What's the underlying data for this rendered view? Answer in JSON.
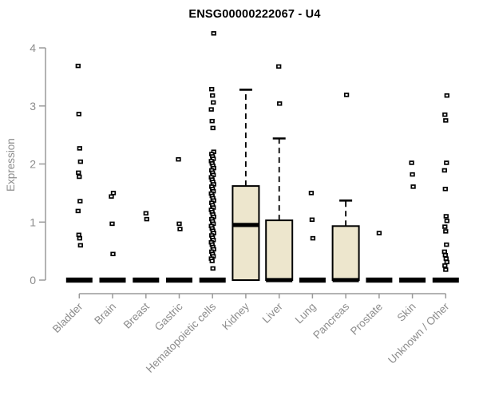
{
  "title": "ENSG00000222067 - U4",
  "chart_data": {
    "type": "boxplot",
    "title": "ENSG00000222067 - U4",
    "xlabel": "",
    "ylabel": "Expression",
    "ylim": [
      0,
      4.3
    ],
    "y_ticks": [
      0,
      1,
      2,
      3,
      4
    ],
    "grid": false,
    "legend": "none",
    "colors": {
      "box_fill": "#EDE6CD",
      "box_stroke": "#000000",
      "median": "#000000",
      "outlier": "#000000",
      "axis_line": "#9A9A9A",
      "axis_text": "#8C8C8C",
      "title_text": "#000000",
      "background": "#FFFFFF"
    },
    "categories": [
      "Bladder",
      "Brain",
      "Breast",
      "Gastric",
      "Hematopoietic cells",
      "Kidney",
      "Liver",
      "Lung",
      "Pancreas",
      "Prostate",
      "Skin",
      "Unknown / Other"
    ],
    "series": [
      {
        "name": "Bladder",
        "q1": 0,
        "median": 0,
        "q3": 0,
        "whisker_low": 0,
        "whisker_high": 0,
        "outliers": [
          3.69,
          2.86,
          2.27,
          2.04,
          1.85,
          1.78,
          1.36,
          1.19,
          0.78,
          0.72,
          0.6
        ]
      },
      {
        "name": "Brain",
        "q1": 0,
        "median": 0,
        "q3": 0,
        "whisker_low": 0,
        "whisker_high": 0,
        "outliers": [
          1.5,
          1.44,
          0.97,
          0.45
        ]
      },
      {
        "name": "Breast",
        "q1": 0,
        "median": 0,
        "q3": 0,
        "whisker_low": 0,
        "whisker_high": 0,
        "outliers": [
          1.15,
          1.05
        ]
      },
      {
        "name": "Gastric",
        "q1": 0,
        "median": 0,
        "q3": 0,
        "whisker_low": 0,
        "whisker_high": 0,
        "outliers": [
          2.08,
          0.97,
          0.88
        ]
      },
      {
        "name": "Hematopoietic cells",
        "q1": 0,
        "median": 0,
        "q3": 0,
        "whisker_low": 0,
        "whisker_high": 0,
        "outliers": [
          4.25,
          3.29,
          3.18,
          3.06,
          2.94,
          2.74,
          2.62,
          2.21,
          2.17,
          2.13,
          2.09,
          2.05,
          2.01,
          1.97,
          1.93,
          1.89,
          1.85,
          1.81,
          1.77,
          1.73,
          1.69,
          1.65,
          1.61,
          1.57,
          1.53,
          1.49,
          1.45,
          1.41,
          1.37,
          1.33,
          1.29,
          1.25,
          1.21,
          1.17,
          1.13,
          1.09,
          1.05,
          1.01,
          0.97,
          0.93,
          0.89,
          0.85,
          0.81,
          0.77,
          0.73,
          0.69,
          0.65,
          0.61,
          0.57,
          0.53,
          0.49,
          0.45,
          0.41,
          0.37,
          0.33,
          0.2
        ]
      },
      {
        "name": "Kidney",
        "q1": 0,
        "median": 0.95,
        "q3": 1.62,
        "whisker_low": 0,
        "whisker_high": 3.28,
        "outliers": []
      },
      {
        "name": "Liver",
        "q1": 0,
        "median": 0,
        "q3": 1.03,
        "whisker_low": 0,
        "whisker_high": 2.44,
        "outliers": [
          3.68,
          3.04
        ]
      },
      {
        "name": "Lung",
        "q1": 0,
        "median": 0,
        "q3": 0,
        "whisker_low": 0,
        "whisker_high": 0,
        "outliers": [
          1.5,
          1.04,
          0.72
        ]
      },
      {
        "name": "Pancreas",
        "q1": 0,
        "median": 0,
        "q3": 0.93,
        "whisker_low": 0,
        "whisker_high": 1.37,
        "outliers": [
          3.19
        ]
      },
      {
        "name": "Prostate",
        "q1": 0,
        "median": 0,
        "q3": 0,
        "whisker_low": 0,
        "whisker_high": 0,
        "outliers": [
          0.81
        ]
      },
      {
        "name": "Skin",
        "q1": 0,
        "median": 0,
        "q3": 0,
        "whisker_low": 0,
        "whisker_high": 0,
        "outliers": [
          2.02,
          1.82,
          1.61
        ]
      },
      {
        "name": "Unknown / Other",
        "q1": 0,
        "median": 0,
        "q3": 0,
        "whisker_low": 0,
        "whisker_high": 0,
        "outliers": [
          3.18,
          2.85,
          2.75,
          2.02,
          1.89,
          1.57,
          1.1,
          1.02,
          0.92,
          0.84,
          0.61,
          0.49,
          0.43,
          0.37,
          0.31,
          0.25,
          0.18
        ]
      }
    ]
  }
}
